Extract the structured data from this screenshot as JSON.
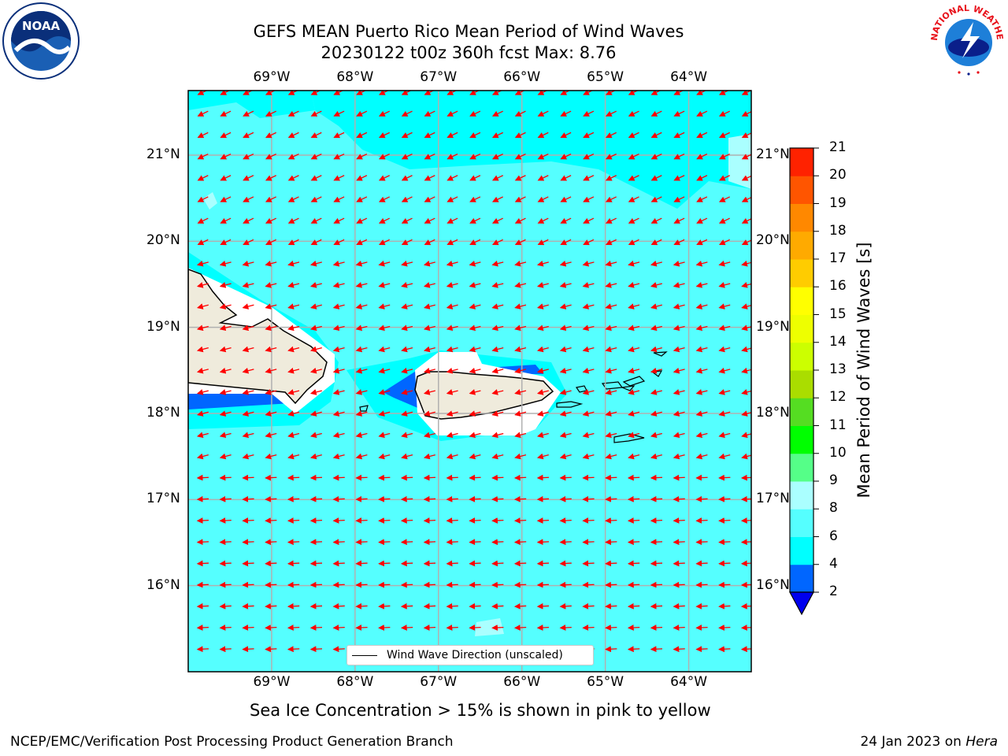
{
  "title": {
    "line1": "GEFS MEAN Puerto Rico Mean Period of Wind Waves",
    "line2": "20230122 t00z 360h fcst   Max: 8.76"
  },
  "logos": {
    "left": "noaa-logo",
    "right": "national-weather-service-logo",
    "right_text": "NATIONAL WEATHER SERVICE"
  },
  "map": {
    "lon_labels": [
      "69°W",
      "68°W",
      "67°W",
      "66°W",
      "65°W",
      "64°W"
    ],
    "lat_labels": [
      "21°N",
      "20°N",
      "19°N",
      "18°N",
      "17°N",
      "16°N"
    ],
    "lon_values": [
      -69,
      -68,
      -67,
      -66,
      -65,
      -64
    ],
    "lat_values": [
      21,
      20,
      19,
      18,
      17,
      16
    ],
    "extent": {
      "lon_min": -70,
      "lon_max": -63.25,
      "lat_min": 15,
      "lat_max": 21.75
    },
    "legend_label": "Wind Wave Direction (unscaled)",
    "arrow_color": "#ff0000",
    "land_color": "#efebdc",
    "sea_base_color": "#55ffff"
  },
  "colorbar": {
    "label": "Mean Period of Wind Waves [s]",
    "ticks": [
      "2",
      "4",
      "6",
      "8",
      "9",
      "10",
      "11",
      "12",
      "13",
      "14",
      "15",
      "16",
      "17",
      "18",
      "19",
      "20",
      "21"
    ],
    "colors": [
      "#0066ff",
      "#00ffff",
      "#55ffff",
      "#aaffff",
      "#55ff88",
      "#00ff00",
      "#55dd22",
      "#aadd00",
      "#ccff00",
      "#eeff00",
      "#ffff00",
      "#ffcc00",
      "#ffaa00",
      "#ff8800",
      "#ff5500",
      "#ff2200"
    ],
    "extend_color": "#0000ee"
  },
  "subtitle": "Sea Ice Concentration > 15% is shown in pink to yellow",
  "footer": {
    "left": "NCEP/EMC/Verification Post Processing Product Generation Branch",
    "right_prefix": "24 Jan 2023 on ",
    "right_host": "Hera"
  }
}
